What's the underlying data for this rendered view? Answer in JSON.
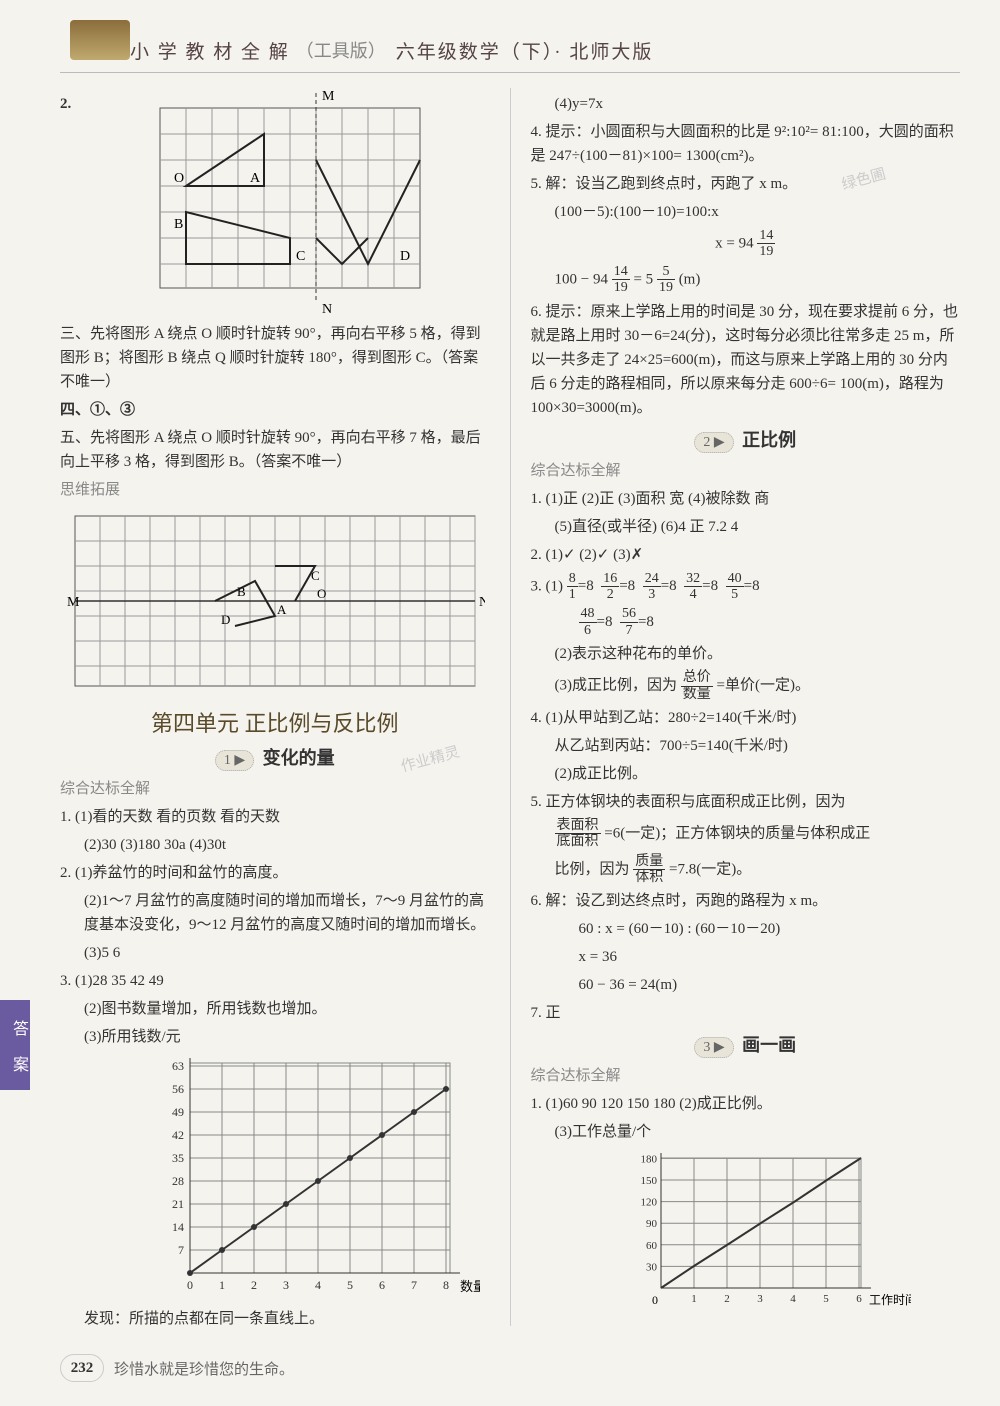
{
  "header": {
    "title": "小 学 教 材 全 解",
    "tool": "（工具版）",
    "grade": "六年级数学（下）· 北师大版"
  },
  "tab": "答 案",
  "footer": {
    "page": "232",
    "quote": "珍惜水就是珍惜您的生命。"
  },
  "left": {
    "q2": {
      "label": "2.",
      "M": "M",
      "N": "N",
      "O": "O",
      "A": "A",
      "B": "B",
      "C": "C",
      "D": "D"
    },
    "san": "三、先将图形 A 绕点 O 顺时针旋转 90°，再向右平移 5 格，得到图形 B；将图形 B 绕点 Q 顺时针旋转 180°，得到图形 C。（答案不唯一）",
    "si": "四、①、③",
    "wu": "五、先将图形 A 绕点 O 顺时针旋转 90°，再向右平移 7 格，最后向上平移 3 格，得到图形 B。（答案不唯一）",
    "siwei": "思维拓展",
    "grid2": {
      "M": "M",
      "N": "N",
      "O": "O",
      "A": "A",
      "B": "B",
      "C": "C",
      "D": "D"
    },
    "unit": "第四单元  正比例与反比例",
    "s1": {
      "badge": "1 ▶",
      "title": "变化的量"
    },
    "zonghe": "综合达标全解",
    "q1a": "1. (1)看的天数  看的页数  看的天数",
    "q1b": "(2)30  (3)180  30a  (4)30t",
    "q2a": "2. (1)养盆竹的时间和盆竹的高度。",
    "q2b": "(2)1～7 月盆竹的高度随时间的增加而增长，7～9 月盆竹的高度基本没变化，9～12 月盆竹的高度又随时间的增加而增长。",
    "q2c": "(3)5  6",
    "q3a": "3. (1)28  35  42  49",
    "q3b": "(2)图书数量增加，所用钱数也增加。",
    "q3c": "(3)所用钱数/元",
    "chart1": {
      "ylabels": [
        "7",
        "14",
        "21",
        "28",
        "35",
        "42",
        "49",
        "56",
        "63"
      ],
      "xlabels": [
        "0",
        "1",
        "2",
        "3",
        "4",
        "5",
        "6",
        "7",
        "8"
      ],
      "xaxis": "数量/本"
    },
    "faxian": "发现：所描的点都在同一条直线上。",
    "watermark": "作业精灵"
  },
  "right": {
    "q4pre": "(4)y=7x",
    "q4": "4. 提示：小圆面积与大圆面积的比是 9²:10²= 81:100，大圆的面积是 247÷(100－81)×100= 1300(cm²)。",
    "q5a": "5. 解：设当乙跑到终点时，丙跑了 x m。",
    "q5b": "(100－5):(100－10)=100:x",
    "q5c_num": "14",
    "q5c_den": "19",
    "q5c_pre": "x = 94",
    "q5d_pre": "100 − 94",
    "q5d_n1": "14",
    "q5d_d1": "19",
    "q5d_mid": " = 5 ",
    "q5d_n2": "5",
    "q5d_d2": "19",
    "q5d_post": "(m)",
    "q6": "6. 提示：原来上学路上用的时间是 30 分，现在要求提前 6 分，也就是路上用时 30－6=24(分)，这时每分必须比往常多走 25 m，所以一共多走了 24×25=600(m)，而这与原来上学路上用的 30 分内后 6 分走的路程相同，所以原来每分走 600÷6= 100(m)，路程为 100×30=3000(m)。",
    "s2": {
      "badge": "2 ▶",
      "title": "正比例"
    },
    "zonghe": "综合达标全解",
    "r1": "1. (1)正  (2)正  (3)面积  宽  (4)被除数  商",
    "r1b": "(5)直径(或半径)  (6)4  正  7.2  4",
    "r2": "2. (1)✓  (2)✓  (3)✗",
    "r3_label": "3. (1)",
    "r3_fracs": [
      {
        "n": "8",
        "d": "1"
      },
      {
        "n": "16",
        "d": "2"
      },
      {
        "n": "24",
        "d": "3"
      },
      {
        "n": "32",
        "d": "4"
      },
      {
        "n": "40",
        "d": "5"
      }
    ],
    "r3_eq": "=8",
    "r3b_fracs": [
      {
        "n": "48",
        "d": "6"
      },
      {
        "n": "56",
        "d": "7"
      }
    ],
    "r3c": "(2)表示这种花布的单价。",
    "r3d_pre": "(3)成正比例，因为",
    "r3d_n": "总价",
    "r3d_d": "数量",
    "r3d_post": "=单价(一定)。",
    "r4a": "4. (1)从甲站到乙站：280÷2=140(千米/时)",
    "r4b": "从乙站到丙站：700÷5=140(千米/时)",
    "r4c": "(2)成正比例。",
    "r5_pre": "5. 正方体钢块的表面积与底面积成正比例，因为",
    "r5_n1": "表面积",
    "r5_d1": "底面积",
    "r5_mid": "=6(一定)；正方体钢块的质量与体积成正",
    "r5_mid2": "比例，因为",
    "r5_n2": "质量",
    "r5_d2": "体积",
    "r5_post": "=7.8(一定)。",
    "r6a": "6. 解：设乙到达终点时，丙跑的路程为 x m。",
    "r6b": "60 : x = (60－10) : (60－10－20)",
    "r6c": "x = 36",
    "r6d": "60 − 36 = 24(m)",
    "r7": "7. 正",
    "s3": {
      "badge": "3 ▶",
      "title": "画一画"
    },
    "rr1": "1. (1)60  90  120  150  180    (2)成正比例。",
    "rr1b": "(3)工作总量/个",
    "chart2": {
      "ylabels": [
        "30",
        "60",
        "90",
        "120",
        "150",
        "180"
      ],
      "xlabels": [
        "1",
        "2",
        "3",
        "4",
        "5",
        "6"
      ],
      "xaxis": "工作时间/时"
    },
    "watermark": "绿色圃"
  }
}
